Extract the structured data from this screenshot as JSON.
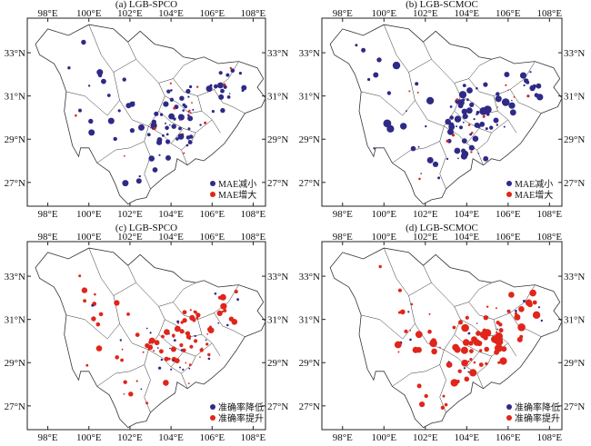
{
  "figure": {
    "colors": {
      "decrease": "#2f2a86",
      "increase": "#e0251b",
      "boundary": "#333333",
      "frame": "#222222"
    },
    "x_ticks": [
      "98°E",
      "100°E",
      "102°E",
      "104°E",
      "106°E",
      "108°E"
    ],
    "y_ticks": [
      "33°N",
      "31°N",
      "29°N",
      "27°N"
    ],
    "panels": [
      {
        "title": "(a) LGB-SPCO",
        "legend": [
          {
            "label": "MAE减小",
            "color": "decrease"
          },
          {
            "label": "MAE增大",
            "color": "increase"
          }
        ],
        "emphasis": "decrease",
        "density": "medium"
      },
      {
        "title": "(b) LGB-SCMOC",
        "legend": [
          {
            "label": "MAE减小",
            "color": "decrease"
          },
          {
            "label": "MAE增大",
            "color": "increase"
          }
        ],
        "emphasis": "decrease",
        "density": "high"
      },
      {
        "title": "(c) LGB-SPCO",
        "legend": [
          {
            "label": "准确率降低",
            "color": "decrease"
          },
          {
            "label": "准确率提升",
            "color": "increase"
          }
        ],
        "emphasis": "increase",
        "density": "medium"
      },
      {
        "title": "(d) LGB-SCMOC",
        "legend": [
          {
            "label": "准确率降低",
            "color": "decrease"
          },
          {
            "label": "准确率提升",
            "color": "increase"
          }
        ],
        "emphasis": "increase",
        "density": "high"
      }
    ]
  }
}
